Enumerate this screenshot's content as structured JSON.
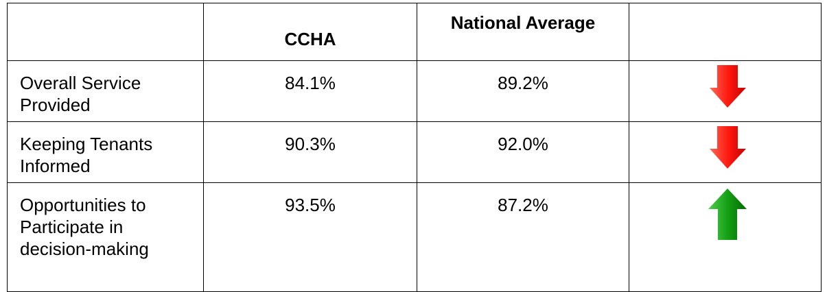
{
  "table": {
    "header": [
      "CCHA",
      "National Average"
    ],
    "rows": [
      {
        "label": [
          "Overall Service",
          "Provided"
        ],
        "ccha": "84.1%",
        "national": "89.2%"
      },
      {
        "label": [
          "Keeping Tenants",
          "Informed"
        ],
        "ccha": "90.3%",
        "national": "92.0%"
      },
      {
        "label": [
          "Opportunities to",
          "Participate in",
          "decision-making"
        ],
        "ccha": "93.5%",
        "national": "87.2%"
      }
    ]
  }
}
